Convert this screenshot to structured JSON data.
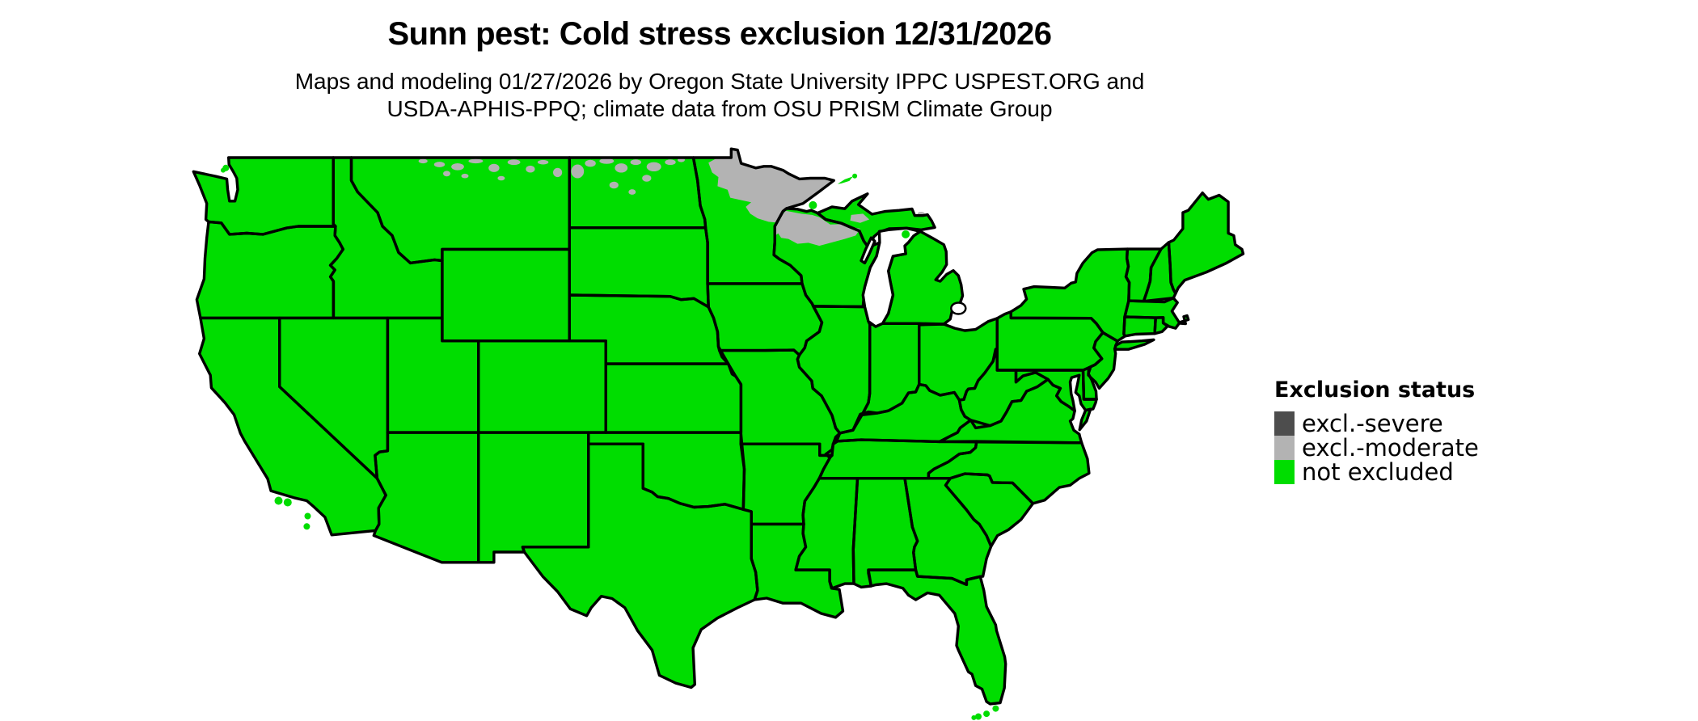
{
  "title": "Sunn pest: Cold stress exclusion 12/31/2026",
  "subtitle": {
    "line1": "Maps and modeling 01/27/2026 by Oregon State University IPPC USPEST.ORG and",
    "line2": "USDA-APHIS-PPQ; climate data from OSU PRISM Climate Group"
  },
  "legend": {
    "title": "Exclusion status",
    "items": [
      {
        "label": "excl.-severe",
        "color": "#4d4d4d",
        "status": "excluded-severe"
      },
      {
        "label": "excl.-moderate",
        "color": "#b3b3b3",
        "status": "excluded-moderate"
      },
      {
        "label": "not excluded",
        "color": "#00dd00",
        "status": "not-excluded"
      }
    ]
  },
  "map": {
    "type": "choropleth",
    "region": "Contiguous United States",
    "projection": "latitude-longitude",
    "border_color": "#000000",
    "water_color": "#ffffff",
    "background_color": "#ffffff",
    "default_status": "not excluded",
    "excluded_moderate_areas": [
      "northern and northeastern Minnesota (arrowhead region)",
      "northern Wisconsin",
      "Michigan Upper Peninsula (interior patches)",
      "northern North Dakota (scattered patches)",
      "northern Montana along Canadian border (scattered patches)"
    ],
    "excluded_severe_areas": []
  }
}
